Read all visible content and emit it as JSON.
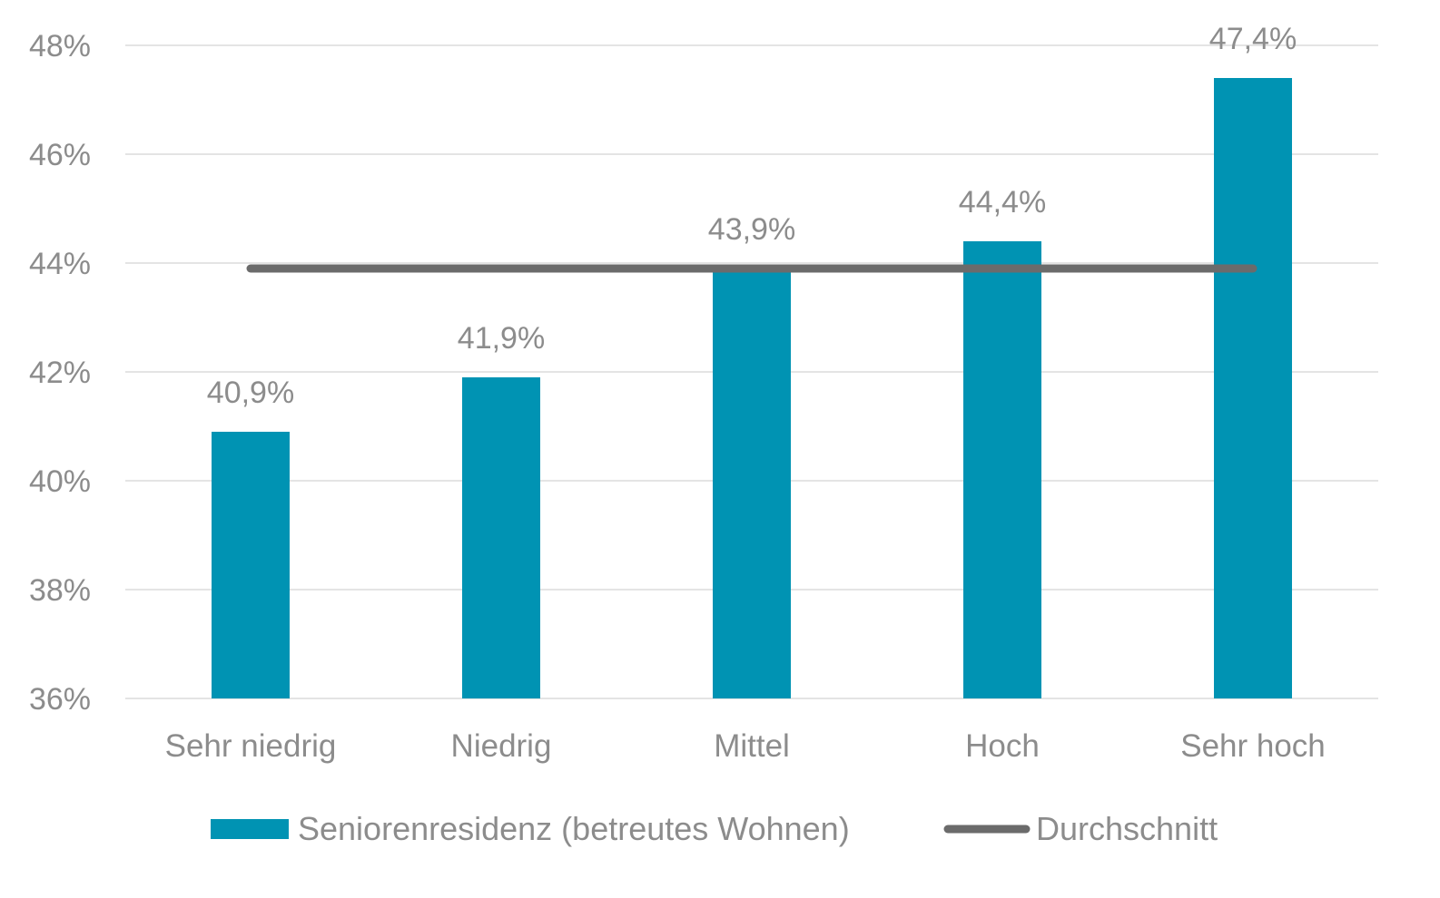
{
  "chart_data": {
    "type": "bar",
    "categories": [
      "Sehr niedrig",
      "Niedrig",
      "Mittel",
      "Hoch",
      "Sehr hoch"
    ],
    "series": [
      {
        "name": "Seniorenresidenz (betreutes Wohnen)",
        "type": "bar",
        "values": [
          40.9,
          41.9,
          43.9,
          44.4,
          47.4
        ],
        "labels": [
          "40,9%",
          "41,9%",
          "43,9%",
          "44,4%",
          "47,4%"
        ],
        "color": "#0093b3"
      },
      {
        "name": "Durchschnitt",
        "type": "line",
        "values": [
          43.9,
          43.9,
          43.9,
          43.9,
          43.9
        ],
        "color": "#6b6b6b"
      }
    ],
    "ylim": [
      36,
      48
    ],
    "yticks": [
      36,
      38,
      40,
      42,
      44,
      46,
      48
    ],
    "ytick_labels": [
      "36%",
      "38%",
      "40%",
      "42%",
      "44%",
      "46%",
      "48%"
    ],
    "grid": true,
    "legend_position": "bottom"
  }
}
